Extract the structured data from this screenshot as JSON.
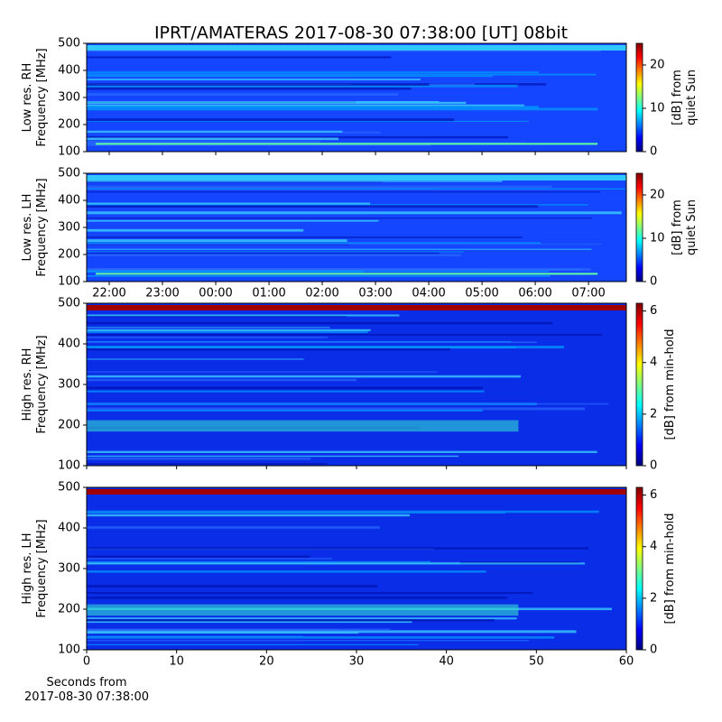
{
  "chart_data": [
    {
      "type": "heatmap",
      "title": "IPRT/AMATERAS 2017-08-30 07:38:00 [UT]   08bit",
      "ylabel": [
        "Low res. RH",
        "Frequency [MHz]"
      ],
      "ylim": [
        100,
        500
      ],
      "yticks": [
        100,
        200,
        300,
        400,
        500
      ],
      "colormap": "jet",
      "clim": [
        0,
        25
      ],
      "cticks": [
        0,
        10,
        20
      ],
      "colorbar_label": [
        "[dB] from",
        "quiet Sun"
      ]
    },
    {
      "type": "heatmap",
      "ylabel": [
        "Low res. LH",
        "Frequency [MHz]"
      ],
      "ylim": [
        100,
        500
      ],
      "yticks": [
        100,
        200,
        300,
        400,
        500
      ],
      "xlim": [
        21.576,
        31.71
      ],
      "xticks": [
        {
          "value": 22,
          "label": "22:00"
        },
        {
          "value": 23,
          "label": "23:00"
        },
        {
          "value": 24,
          "label": "00:00"
        },
        {
          "value": 25,
          "label": "01:00"
        },
        {
          "value": 26,
          "label": "02:00"
        },
        {
          "value": 27,
          "label": "03:00"
        },
        {
          "value": 28,
          "label": "04:00"
        },
        {
          "value": 29,
          "label": "05:00"
        },
        {
          "value": 30,
          "label": "06:00"
        },
        {
          "value": 31,
          "label": "07:00"
        }
      ],
      "colormap": "jet",
      "clim": [
        0,
        25
      ],
      "cticks": [
        0,
        10,
        20
      ],
      "colorbar_label": [
        "[dB] from",
        "quiet Sun"
      ]
    },
    {
      "type": "heatmap",
      "ylabel": [
        "High res. RH",
        "Frequency [MHz]"
      ],
      "ylim": [
        100,
        500
      ],
      "yticks": [
        100,
        200,
        300,
        400,
        500
      ],
      "colormap": "jet",
      "clim": [
        0,
        6.3
      ],
      "cticks": [
        0,
        2,
        4,
        6
      ],
      "colorbar_label": [
        "[dB] from min-hold"
      ]
    },
    {
      "type": "heatmap",
      "ylabel": [
        "High res. LH",
        "Frequency [MHz]"
      ],
      "ylim": [
        100,
        500
      ],
      "yticks": [
        100,
        200,
        300,
        400,
        500
      ],
      "xlim": [
        0,
        60
      ],
      "xticks": [
        0,
        10,
        20,
        30,
        40,
        50,
        60
      ],
      "xlabel": [
        "Seconds from",
        "2017-08-30 07:38:00"
      ],
      "colormap": "jet",
      "clim": [
        0,
        6.3
      ],
      "cticks": [
        0,
        2,
        4,
        6
      ],
      "colorbar_label": [
        "[dB] from min-hold"
      ]
    }
  ]
}
